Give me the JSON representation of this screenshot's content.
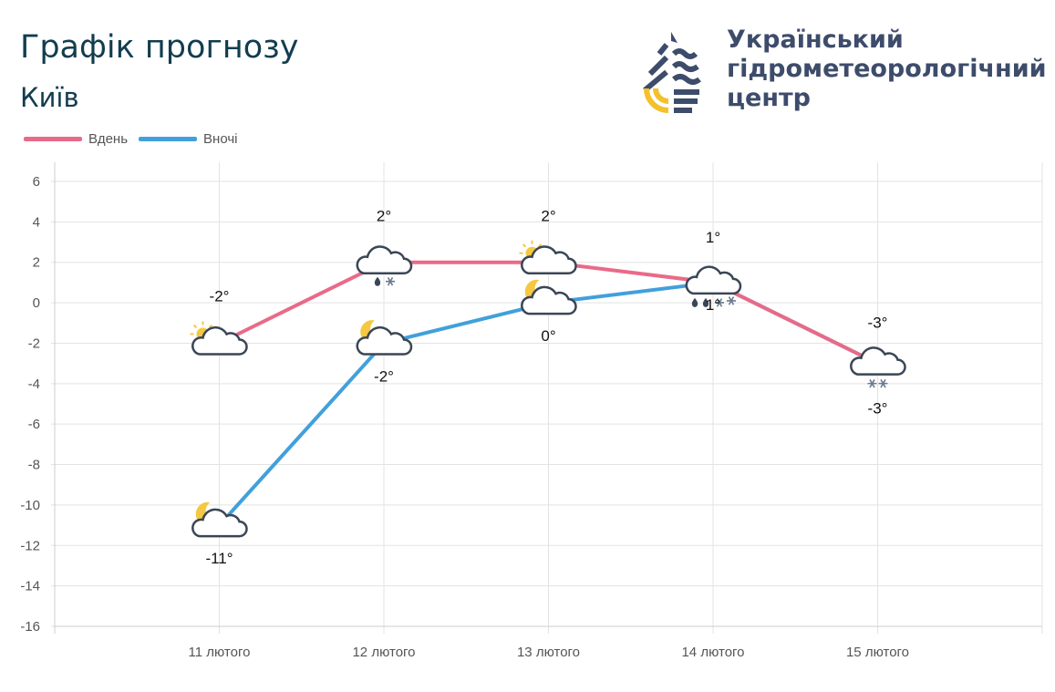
{
  "header": {
    "title": "Графік прогнозу",
    "city": "Київ"
  },
  "logo": {
    "org_lines": [
      "Український",
      "гідрометеорологічний",
      "центр"
    ]
  },
  "chart_data": {
    "type": "line",
    "categories": [
      "11 лютого",
      "12 лютого",
      "13 лютого",
      "14 лютого",
      "15 лютого"
    ],
    "ylim": [
      -16,
      6
    ],
    "yticks": [
      6,
      4,
      2,
      0,
      -2,
      -4,
      -6,
      -8,
      -10,
      -12,
      -14,
      -16
    ],
    "grid": true,
    "legend": "top-left",
    "series": [
      {
        "name": "Вдень",
        "color": "#e96a88",
        "values": [
          -2,
          2,
          2,
          1,
          -3
        ],
        "labels": [
          "-2°",
          "2°",
          "2°",
          "1°",
          "-3°"
        ],
        "icons": [
          "sun-cloud",
          "cloud-rain-snow",
          "sun-cloud",
          "cloud-rain-snow",
          "cloud-snow"
        ]
      },
      {
        "name": "Вночі",
        "color": "#41a0db",
        "values": [
          -11,
          -2,
          0,
          1,
          -3
        ],
        "labels": [
          "-11°",
          "-2°",
          "0°",
          "1°",
          "-3°"
        ],
        "icons": [
          "moon-cloud",
          "moon-cloud",
          "moon-cloud",
          "cloud-rain-snow",
          "cloud-snow"
        ]
      }
    ]
  }
}
